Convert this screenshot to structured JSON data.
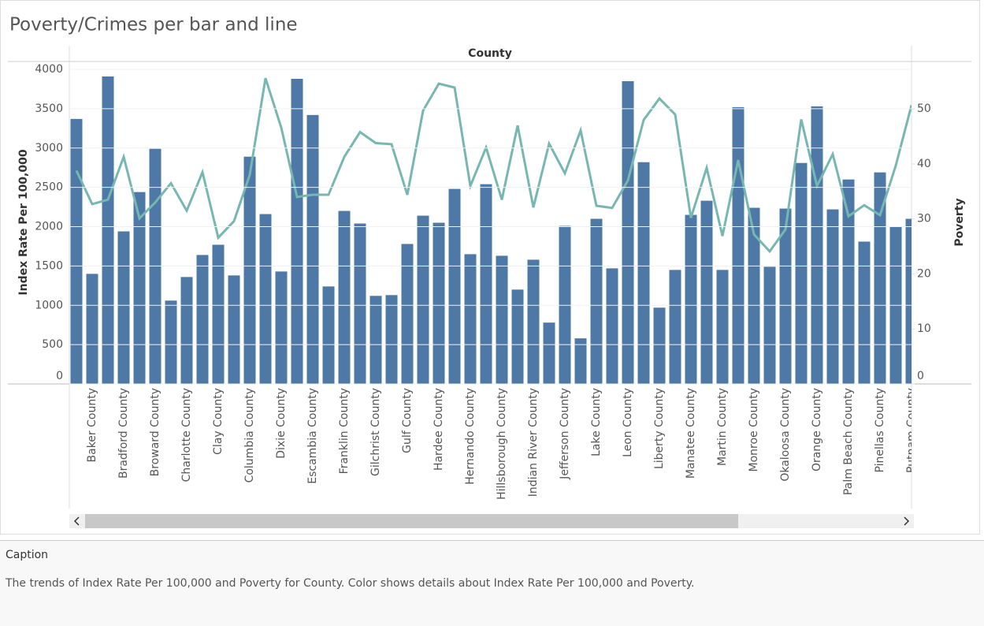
{
  "chart_data": {
    "type": "bar",
    "title": "Poverty/Crimes per bar and line",
    "x_header": "County",
    "categories": [
      null,
      "Baker County",
      null,
      "Bradford County",
      null,
      "Broward County",
      null,
      "Charlotte County",
      null,
      "Clay County",
      null,
      "Columbia County",
      null,
      "Dixie County",
      null,
      "Escambia County",
      null,
      "Franklin County",
      null,
      "Gilchrist County",
      null,
      "Gulf County",
      null,
      "Hardee County",
      null,
      "Hernando County",
      null,
      "Hillsborough County",
      null,
      "Indian River County",
      null,
      "Jefferson County",
      null,
      "Lake County",
      null,
      "Leon County",
      null,
      "Liberty County",
      null,
      "Manatee County",
      null,
      "Martin County",
      null,
      "Monroe County",
      null,
      "Okaloosa County",
      null,
      "Orange County",
      null,
      "Palm Beach County",
      null,
      "Pinellas County",
      null,
      "Putnam County"
    ],
    "series": [
      {
        "name": "Index Rate Per 100,000",
        "type": "bar",
        "color": "#4e79a7",
        "values": [
          3370,
          1400,
          3910,
          1940,
          2440,
          2990,
          1060,
          1360,
          1640,
          1770,
          1380,
          2890,
          2160,
          1430,
          3880,
          3420,
          1240,
          2200,
          2040,
          1120,
          1130,
          1780,
          2140,
          2050,
          2480,
          1650,
          2540,
          1630,
          1200,
          1580,
          780,
          2010,
          580,
          2100,
          1470,
          3850,
          2820,
          970,
          1450,
          2150,
          2330,
          1450,
          3520,
          2240,
          1490,
          2230,
          2810,
          3530,
          2220,
          2600,
          1810,
          2690,
          2000,
          2100
        ]
      },
      {
        "name": "Poverty",
        "type": "line",
        "axis": "y2",
        "color": "#76b7b2",
        "values": [
          38.8,
          32.7,
          33.5,
          41.3,
          30.1,
          33.0,
          36.5,
          31.5,
          38.5,
          26.6,
          29.6,
          38.0,
          55.6,
          46.6,
          34.0,
          34.4,
          34.4,
          41.3,
          45.8,
          43.8,
          43.6,
          34.4,
          49.7,
          54.6,
          53.9,
          36.0,
          43.0,
          33.5,
          47.0,
          32.1,
          43.7,
          38.3,
          46.1,
          32.4,
          32.0,
          37.0,
          48.0,
          51.9,
          49.0,
          30.2,
          39.3,
          26.9,
          40.7,
          27.2,
          24.1,
          28.1,
          48.1,
          36.0,
          41.8,
          30.5,
          32.5,
          30.7,
          39.7,
          50.7
        ]
      }
    ],
    "ylim": [
      0,
      4000
    ],
    "yticks": [
      0,
      500,
      1000,
      1500,
      2000,
      2500,
      3000,
      3500,
      4000
    ],
    "y2lim": [
      0,
      57.2
    ],
    "y2ticks": [
      0,
      10,
      20,
      30,
      40,
      50
    ],
    "grid": true
  },
  "caption": {
    "label": "Caption",
    "text": "The trends of Index Rate Per 100,000 and Poverty for County.  Color shows details about Index Rate Per 100,000 and Poverty."
  }
}
